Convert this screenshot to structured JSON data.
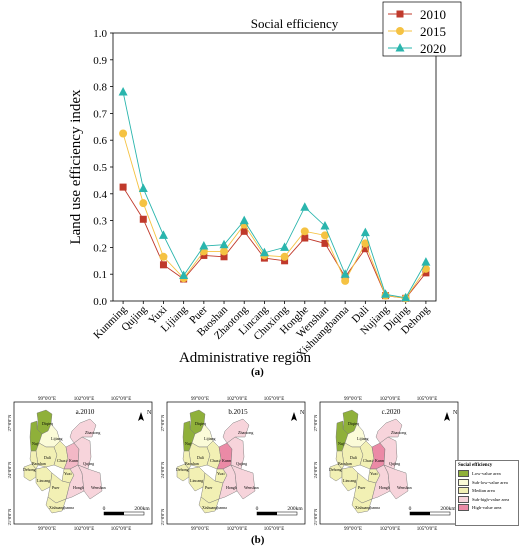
{
  "chart_data": {
    "type": "line",
    "title": "Social efficiency",
    "xlabel": "Administrative region",
    "ylabel": "Land use efficiency index",
    "ylim": [
      0,
      1.0
    ],
    "yticks": [
      "0.0",
      "0.1",
      "0.2",
      "0.3",
      "0.4",
      "0.5",
      "0.6",
      "0.7",
      "0.8",
      "0.9",
      "1.0"
    ],
    "categories": [
      "Kunming",
      "Qujing",
      "Yuxi",
      "Lijiang",
      "Puer",
      "Baoshan",
      "Zhaotong",
      "Lincang",
      "Chuxiong",
      "Honghe",
      "Wenshan",
      "Xishuangbanna",
      "Dali",
      "Nujiang",
      "Diqing",
      "Dehong"
    ],
    "series": [
      {
        "name": "2010",
        "color": "#c0392b",
        "marker": "square",
        "values": [
          0.425,
          0.305,
          0.135,
          0.082,
          0.17,
          0.165,
          0.26,
          0.16,
          0.15,
          0.235,
          0.215,
          0.09,
          0.195,
          0.02,
          0.01,
          0.105
        ]
      },
      {
        "name": "2015",
        "color": "#f5c242",
        "marker": "circle",
        "values": [
          0.625,
          0.365,
          0.165,
          0.085,
          0.185,
          0.185,
          0.285,
          0.17,
          0.165,
          0.26,
          0.245,
          0.075,
          0.215,
          0.02,
          0.01,
          0.12
        ]
      },
      {
        "name": "2020",
        "color": "#2ab5ad",
        "marker": "triangle",
        "values": [
          0.78,
          0.42,
          0.245,
          0.095,
          0.205,
          0.21,
          0.3,
          0.18,
          0.2,
          0.35,
          0.28,
          0.1,
          0.255,
          0.025,
          0.012,
          0.145
        ]
      }
    ],
    "legend_position": "top-right",
    "caption": "(a)"
  },
  "maps": {
    "caption": "(b)",
    "panels": [
      {
        "title": "a.2010",
        "kunming_fill": "#f3b8c6"
      },
      {
        "title": "b.2015",
        "kunming_fill": "#eb8aa6"
      },
      {
        "title": "c.2020",
        "kunming_fill": "#eb8aa6"
      }
    ],
    "top_coords": [
      "99°0'0\"E",
      "102°0'0\"E",
      "105°0'0\"E"
    ],
    "bottom_coords": [
      "99°0'0\"E",
      "102°0'0\"E",
      "105°0'0\"E"
    ],
    "lat_coords": [
      "27°0'0\"N",
      "24°0'0\"N",
      "21°0'0\"N"
    ],
    "regions": [
      "Diqing",
      "Nujiang",
      "Lijiang",
      "Dali",
      "Dehong",
      "Baoshan",
      "Lincang",
      "Chuxiong",
      "Kunming",
      "Qujing",
      "Zhaotong",
      "Yuxi",
      "Puer",
      "Honghe",
      "Wenshan",
      "Xishuangbanna"
    ],
    "north_label": "N",
    "scale_start": "0",
    "scale_end": "200km",
    "legend": {
      "title": "Social efficiency",
      "items": [
        {
          "label": "Low-value area",
          "color": "#8fb03a"
        },
        {
          "label": "Sub-low-value area",
          "color": "#fbfbd8"
        },
        {
          "label": "Median area",
          "color": "#f2f0b4"
        },
        {
          "label": "Sub-high-value area",
          "color": "#f7d4db"
        },
        {
          "label": "High-value area",
          "color": "#eb8aa6"
        }
      ]
    }
  }
}
